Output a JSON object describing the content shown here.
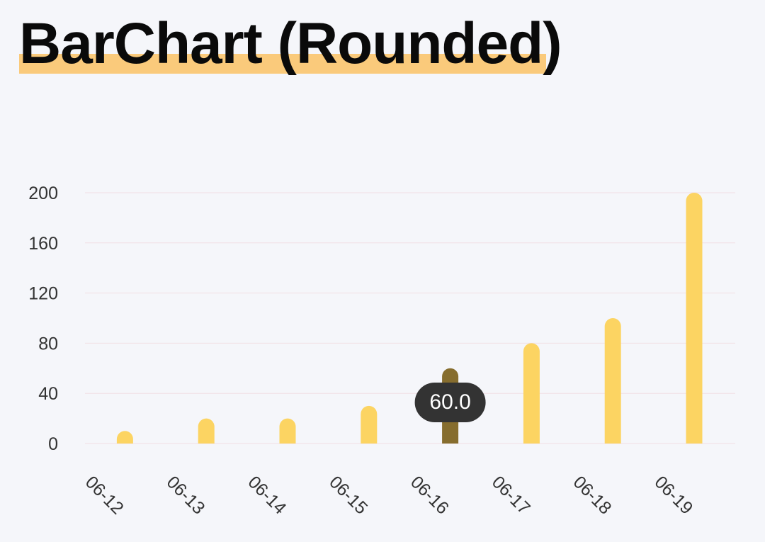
{
  "header": {
    "title": "BarChart (Rounded)"
  },
  "colors": {
    "bar": "#fcd462",
    "bar_selected": "#866d2e",
    "grid": "#f1dfe4",
    "axis_text": "#333333",
    "tooltip_bg": "#333333",
    "tooltip_text": "#ffffff",
    "title_highlight": "#fbbf5f"
  },
  "chart_data": {
    "type": "bar",
    "style": "rounded",
    "categories": [
      "06-12",
      "06-13",
      "06-14",
      "06-15",
      "06-16",
      "06-17",
      "06-18",
      "06-19"
    ],
    "values": [
      10,
      20,
      20,
      30,
      60,
      80,
      100,
      200
    ],
    "ylim": [
      0,
      200
    ],
    "y_ticks": [
      "0",
      "40",
      "80",
      "120",
      "160",
      "200"
    ],
    "grid": true,
    "x_tick_rotation": 45,
    "selected_index": 4,
    "tooltip_text": "60.0"
  }
}
